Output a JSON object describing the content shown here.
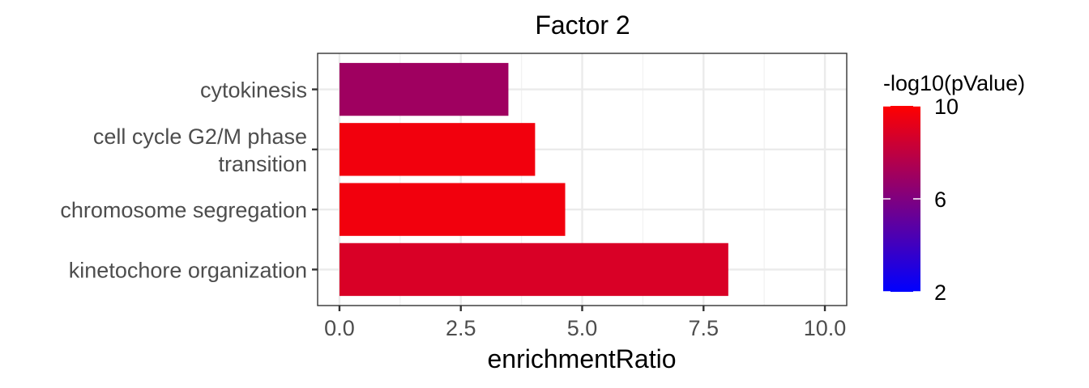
{
  "chart_data": {
    "type": "bar",
    "orientation": "horizontal",
    "title": "Factor 2",
    "xlabel": "enrichmentRatio",
    "ylabel": "",
    "xlim": [
      -0.45,
      10.45
    ],
    "x_ticks": [
      0.0,
      2.5,
      5.0,
      7.5,
      10.0
    ],
    "x_tick_labels": [
      "0.0",
      "2.5",
      "5.0",
      "7.5",
      "10.0"
    ],
    "grid": true,
    "categories": [
      [
        "cytokinesis"
      ],
      [
        "cell cycle G2/M phase",
        "transition"
      ],
      [
        "chromosome segregation"
      ],
      [
        "kinetochore organization"
      ]
    ],
    "values": [
      3.48,
      4.03,
      4.65,
      8.01
    ],
    "color_values": [
      7.0,
      9.6,
      9.6,
      8.8
    ],
    "legend": {
      "title": "-log10(pValue)",
      "min": 2,
      "max": 10,
      "ticks": [
        10,
        6,
        2
      ],
      "low_color": "#0000ff",
      "high_color": "#ff0000",
      "placement": "right"
    }
  }
}
